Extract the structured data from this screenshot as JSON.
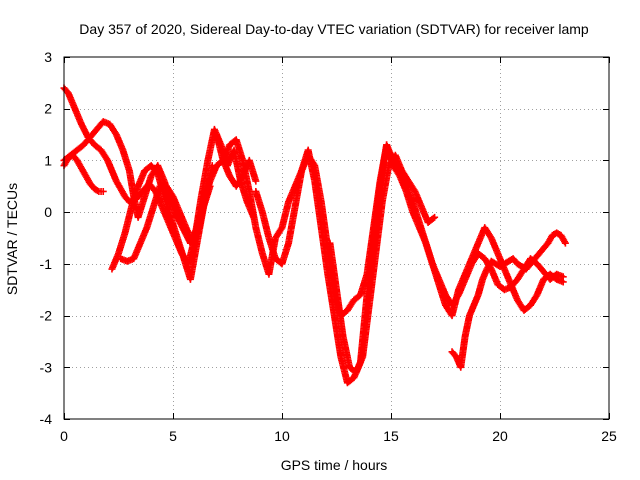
{
  "chart_data": {
    "type": "scatter",
    "title": "Day 357 of 2020, Sidereal Day-to-day VTEC variation (SDTVAR) for receiver lamp",
    "xlabel": "GPS time / hours",
    "ylabel": "SDTVAR / TECUs",
    "xlim": [
      0,
      25
    ],
    "ylim": [
      -4,
      3
    ],
    "xticks": [
      0,
      5,
      10,
      15,
      20,
      25
    ],
    "yticks": [
      -4,
      -3,
      -2,
      -1,
      0,
      1,
      2,
      3
    ],
    "grid": true,
    "marker": "+",
    "color": "#ff0000",
    "series": [
      {
        "name": "track-1",
        "x": [
          0.0,
          0.2,
          0.5,
          0.8,
          1.1,
          1.4,
          1.7,
          2.0,
          2.2,
          2.4,
          2.6,
          2.8,
          3.0,
          3.3,
          3.6,
          3.9,
          4.2,
          4.5,
          4.8,
          5.1,
          5.4,
          5.7,
          6.0,
          6.3,
          6.6,
          6.9,
          7.2,
          7.5,
          7.8,
          8.1,
          8.4,
          8.7
        ],
        "y": [
          2.4,
          2.3,
          2.0,
          1.7,
          1.45,
          1.3,
          1.2,
          1.0,
          0.8,
          0.6,
          0.45,
          0.3,
          0.2,
          0.25,
          0.4,
          0.55,
          0.4,
          0.1,
          -0.2,
          -0.5,
          -0.8,
          -1.0,
          -0.5,
          0.3,
          1.0,
          1.6,
          1.3,
          0.9,
          1.2,
          0.6,
          0.2,
          -0.1
        ]
      },
      {
        "name": "track-2",
        "x": [
          0.0,
          0.3,
          0.6,
          0.9,
          1.2,
          1.5,
          1.8,
          2.1,
          2.4,
          2.7,
          3.0,
          3.2,
          3.4,
          3.7,
          4.0,
          4.3,
          4.6,
          4.9,
          5.2,
          5.5,
          5.8,
          6.1,
          6.4,
          6.7,
          7.0,
          7.3,
          7.6,
          7.9,
          8.2,
          8.5,
          8.8
        ],
        "y": [
          1.0,
          1.1,
          1.2,
          1.3,
          1.45,
          1.6,
          1.75,
          1.7,
          1.5,
          1.2,
          0.8,
          0.3,
          -0.1,
          0.3,
          0.7,
          0.9,
          0.6,
          0.2,
          -0.1,
          -0.35,
          -0.6,
          -0.3,
          0.2,
          0.6,
          0.9,
          1.0,
          0.7,
          0.5,
          0.7,
          1.0,
          0.6
        ]
      },
      {
        "name": "track-3",
        "x": [
          0.0,
          0.2,
          0.4,
          0.6,
          0.8,
          1.0,
          1.2,
          1.4,
          1.6,
          1.8
        ],
        "y": [
          0.9,
          1.05,
          1.1,
          1.0,
          0.85,
          0.7,
          0.55,
          0.45,
          0.4,
          0.4
        ]
      },
      {
        "name": "track-4",
        "x": [
          2.2,
          2.5,
          2.8,
          3.1,
          3.4,
          3.7,
          4.0,
          4.3,
          4.6,
          4.9,
          5.2,
          5.5,
          5.8,
          6.1,
          6.4,
          6.7
        ],
        "y": [
          -1.1,
          -0.8,
          -0.4,
          0.1,
          0.5,
          0.8,
          0.9,
          0.75,
          0.3,
          -0.1,
          -0.5,
          -0.9,
          -1.3,
          -0.6,
          0.1,
          0.5
        ]
      },
      {
        "name": "track-5",
        "x": [
          2.6,
          2.9,
          3.2,
          3.5,
          3.8,
          4.1,
          4.4,
          4.7,
          5.0,
          5.3,
          5.6,
          5.9,
          6.2,
          6.5,
          6.8
        ],
        "y": [
          -0.9,
          -0.95,
          -0.9,
          -0.6,
          -0.3,
          0.1,
          0.5,
          0.5,
          0.3,
          0.0,
          -0.3,
          -0.6,
          -0.3,
          0.3,
          0.9
        ]
      },
      {
        "name": "track-6",
        "x": [
          7.0,
          7.3,
          7.6,
          7.9,
          8.2,
          8.5,
          8.8,
          9.1,
          9.4,
          9.7,
          10.0,
          10.3,
          10.6,
          10.9,
          11.2,
          11.5,
          11.8,
          12.1,
          12.4,
          12.7,
          13.0,
          13.3,
          13.6,
          13.9,
          14.2,
          14.5,
          14.8,
          15.1,
          15.4,
          15.7,
          16.0,
          16.3,
          16.6,
          16.9,
          17.2,
          17.5,
          17.8,
          18.1,
          18.4,
          18.7,
          19.0,
          19.3,
          19.6,
          19.9,
          20.2,
          20.5,
          20.8,
          21.1,
          21.4,
          21.7,
          22.0,
          22.3,
          22.6,
          22.9
        ],
        "y": [
          1.5,
          1.0,
          1.3,
          1.4,
          1.0,
          0.4,
          -0.3,
          -0.8,
          -1.2,
          -0.5,
          -0.3,
          0.2,
          0.5,
          0.8,
          1.2,
          0.6,
          -0.3,
          -1.2,
          -2.0,
          -2.8,
          -3.3,
          -3.2,
          -2.9,
          -1.6,
          -0.5,
          0.5,
          1.3,
          1.0,
          0.8,
          0.5,
          0.2,
          -0.2,
          -0.6,
          -1.0,
          -1.4,
          -1.8,
          -2.0,
          -1.5,
          -1.2,
          -0.9,
          -0.6,
          -0.3,
          -0.5,
          -0.8,
          -1.1,
          -1.4,
          -1.7,
          -1.9,
          -1.8,
          -1.6,
          -1.3,
          -1.2,
          -1.3,
          -1.35
        ]
      },
      {
        "name": "track-7",
        "x": [
          8.8,
          9.1,
          9.4,
          9.7,
          10.0,
          10.3,
          10.6,
          10.9,
          11.2,
          11.5,
          11.8,
          12.1,
          12.4,
          12.7,
          13.0,
          13.3,
          13.6,
          13.9,
          14.2,
          14.5,
          14.8,
          15.1,
          15.4,
          15.7,
          16.0,
          16.3,
          16.6,
          16.9,
          17.2,
          17.5,
          17.8,
          18.1,
          18.4,
          18.7,
          19.0,
          19.3,
          19.6,
          19.9,
          20.2,
          20.5,
          20.8,
          21.1,
          21.4,
          21.7,
          22.0,
          22.3,
          22.6,
          22.9
        ],
        "y": [
          0.4,
          0.0,
          -0.5,
          -0.9,
          -1.0,
          -0.6,
          0.1,
          0.8,
          1.1,
          0.9,
          0.2,
          -0.7,
          -1.6,
          -2.0,
          -1.9,
          -1.7,
          -1.6,
          -1.2,
          -0.3,
          0.6,
          1.3,
          0.9,
          0.7,
          0.4,
          0.0,
          -0.3,
          -0.6,
          -1.0,
          -1.3,
          -1.6,
          -1.8,
          -1.6,
          -1.3,
          -1.0,
          -0.8,
          -0.9,
          -1.1,
          -1.4,
          -1.5,
          -1.45,
          -1.3,
          -1.1,
          -0.9,
          -1.0,
          -1.15,
          -1.3,
          -1.2,
          -1.25
        ]
      },
      {
        "name": "track-8",
        "x": [
          12.2,
          12.5,
          12.8,
          13.1,
          13.4,
          13.7,
          14.0,
          14.3,
          14.6,
          14.9,
          15.2,
          15.5,
          15.8,
          16.1,
          16.4,
          16.7,
          17.0
        ],
        "y": [
          -0.6,
          -1.5,
          -2.4,
          -3.0,
          -3.1,
          -2.8,
          -1.8,
          -0.8,
          0.2,
          0.9,
          1.1,
          0.8,
          0.6,
          0.4,
          0.1,
          -0.2,
          -0.1
        ]
      },
      {
        "name": "track-9",
        "x": [
          17.8,
          18.0,
          18.2,
          18.4,
          18.6,
          18.8,
          19.0,
          19.2,
          19.4,
          19.6,
          19.8,
          20.0,
          20.2,
          20.4,
          20.6,
          20.8,
          21.0,
          21.2,
          21.4,
          21.6,
          21.8,
          22.0,
          22.2,
          22.4,
          22.6,
          22.8,
          23.0
        ],
        "y": [
          -2.7,
          -2.8,
          -3.0,
          -2.4,
          -2.0,
          -1.8,
          -1.6,
          -1.3,
          -1.1,
          -0.95,
          -1.0,
          -1.05,
          -1.0,
          -0.95,
          -0.9,
          -1.0,
          -1.05,
          -1.1,
          -1.0,
          -0.9,
          -0.8,
          -0.7,
          -0.6,
          -0.45,
          -0.4,
          -0.45,
          -0.6
        ]
      }
    ]
  }
}
